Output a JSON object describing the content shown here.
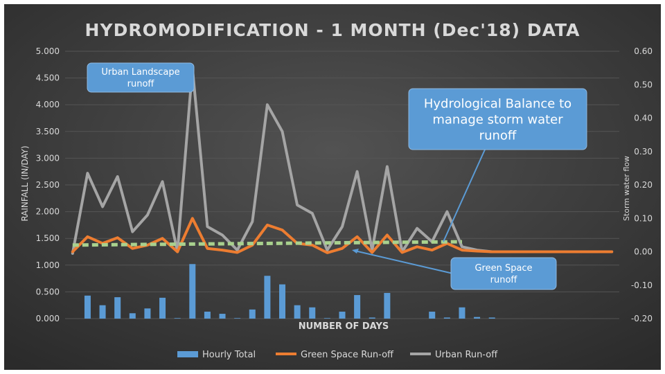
{
  "chart_data": {
    "type": "bar-line-combo",
    "title": "HYDROMODIFICATION - 1 MONTH (Dec'18) DATA",
    "xlabel": "NUMBER OF DAYS",
    "ylabel_left": "RAINFALL (IN/DAY)",
    "ylabel_right": "Storm water flow",
    "ylim_left": [
      0,
      5
    ],
    "ylim_right": [
      -0.2,
      0.6
    ],
    "yticks_left": [
      "0.000",
      "0.500",
      "1.000",
      "1.500",
      "2.000",
      "2.500",
      "3.000",
      "3.500",
      "4.000",
      "4.500",
      "5.000"
    ],
    "yticks_right": [
      "-0.20",
      "-0.10",
      "0.00",
      "0.10",
      "0.20",
      "0.30",
      "0.40",
      "0.50",
      "0.60"
    ],
    "grid": true,
    "legend_position": "bottom",
    "colors": {
      "background": "#3a3a3a",
      "bars": "#5b9bd5",
      "green_space": "#ed7d31",
      "urban": "#a5a5a5",
      "balance": "#a9d18e",
      "callout": "#5b9bd5",
      "text": "#d9d9d9"
    },
    "series": [
      {
        "name": "Hourly Total",
        "axis": "left",
        "type": "bar",
        "values": [
          0,
          0.43,
          0.25,
          0.4,
          0.1,
          0.19,
          0.39,
          0.01,
          1.02,
          0.13,
          0.09,
          0.01,
          0.17,
          0.8,
          0.64,
          0.25,
          0.21,
          0.01,
          0.13,
          0.44,
          0.02,
          0.48,
          0,
          0,
          0.13,
          0.02,
          0.21,
          0.03,
          0.02,
          0,
          0,
          0,
          0,
          0,
          0,
          0,
          0
        ]
      },
      {
        "name": "Green Space Run-off",
        "axis": "right",
        "type": "line",
        "values": [
          0.0,
          0.045,
          0.025,
          0.042,
          0.01,
          0.02,
          0.04,
          0.0,
          0.1,
          0.01,
          0.005,
          -0.002,
          0.02,
          0.08,
          0.065,
          0.025,
          0.02,
          -0.003,
          0.01,
          0.045,
          -0.002,
          0.05,
          -0.002,
          0.015,
          0.005,
          0.025,
          0.005,
          0.002,
          0.0,
          0.0,
          0.0,
          0.0,
          0.0,
          0.0,
          0.0,
          0.0,
          0.0
        ]
      },
      {
        "name": "Urban Run-off",
        "axis": "right",
        "type": "line",
        "values": [
          -0.005,
          0.235,
          0.135,
          0.225,
          0.06,
          0.11,
          0.21,
          0.0,
          0.55,
          0.075,
          0.05,
          0.005,
          0.09,
          0.44,
          0.36,
          0.14,
          0.115,
          0.005,
          0.075,
          0.24,
          0.005,
          0.255,
          0.0,
          0.07,
          0.03,
          0.12,
          0.015,
          0.005,
          0.0,
          0.0,
          0.0,
          0.0,
          0.0,
          0.0,
          0.0,
          0.0,
          0.0
        ]
      },
      {
        "name": "Hydrological Balance",
        "axis": "right",
        "type": "line",
        "style": "dashed",
        "values": [
          0.02,
          0.03
        ]
      }
    ],
    "legend": [
      "Hourly Total",
      "Green Space Run-off",
      "Urban Run-off"
    ],
    "annotations": {
      "urban": "Urban Landscape runoff",
      "balance": "Hydrological Balance to manage storm water runoff",
      "green": "Green Space runoff"
    }
  }
}
